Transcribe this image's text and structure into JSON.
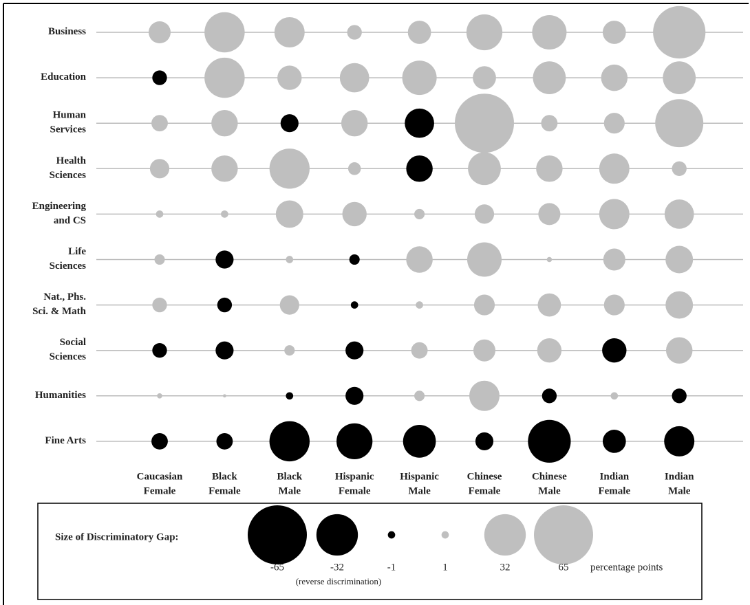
{
  "chart_data": {
    "type": "bubble",
    "rows": [
      [
        "Business"
      ],
      [
        "Education"
      ],
      [
        "Human",
        "Services"
      ],
      [
        "Health",
        "Sciences"
      ],
      [
        "Engineering",
        "and CS"
      ],
      [
        "Life",
        "Sciences"
      ],
      [
        "Nat., Phs.",
        "Sci. & Math"
      ],
      [
        "Social",
        "Sciences"
      ],
      [
        "Humanities"
      ],
      [
        "Fine Arts"
      ]
    ],
    "categories": [
      [
        "Caucasian",
        "Female"
      ],
      [
        "Black",
        "Female"
      ],
      [
        "Black",
        "Male"
      ],
      [
        "Hispanic",
        "Female"
      ],
      [
        "Hispanic",
        "Male"
      ],
      [
        "Chinese",
        "Female"
      ],
      [
        "Chinese",
        "Male"
      ],
      [
        "Indian",
        "Female"
      ],
      [
        "Indian",
        "Male"
      ]
    ],
    "values": [
      [
        9,
        30,
        17,
        4,
        10,
        24,
        22,
        10,
        51
      ],
      [
        -4,
        30,
        11,
        16,
        22,
        10,
        20,
        13,
        20
      ],
      [
        5,
        13,
        -6,
        13,
        -16,
        65,
        5,
        8,
        43
      ],
      [
        7,
        13,
        30,
        3,
        -13,
        20,
        13,
        17,
        4
      ],
      [
        1,
        1,
        14,
        11,
        2,
        7,
        9,
        17,
        16
      ],
      [
        2,
        -6,
        1,
        -2,
        13,
        22,
        0.5,
        9,
        14
      ],
      [
        4,
        -4,
        7,
        -1,
        1,
        8,
        10,
        8,
        14
      ],
      [
        -4,
        -6,
        2,
        -6,
        5,
        9,
        11,
        -11,
        13
      ],
      [
        0.5,
        0.2,
        -1,
        -6,
        2,
        17,
        -4,
        1,
        -4
      ],
      [
        -5,
        -5,
        -30,
        -24,
        -20,
        -6,
        -34,
        -10,
        -17
      ]
    ],
    "positive_color": "#bfbfbf",
    "negative_color": "#000000",
    "legend": {
      "title": "Size of  Discriminatory Gap:",
      "values": [
        -65,
        -32,
        -1,
        1,
        32,
        65
      ],
      "unit": "percentage points",
      "note": "(reverse discrimination)"
    }
  }
}
